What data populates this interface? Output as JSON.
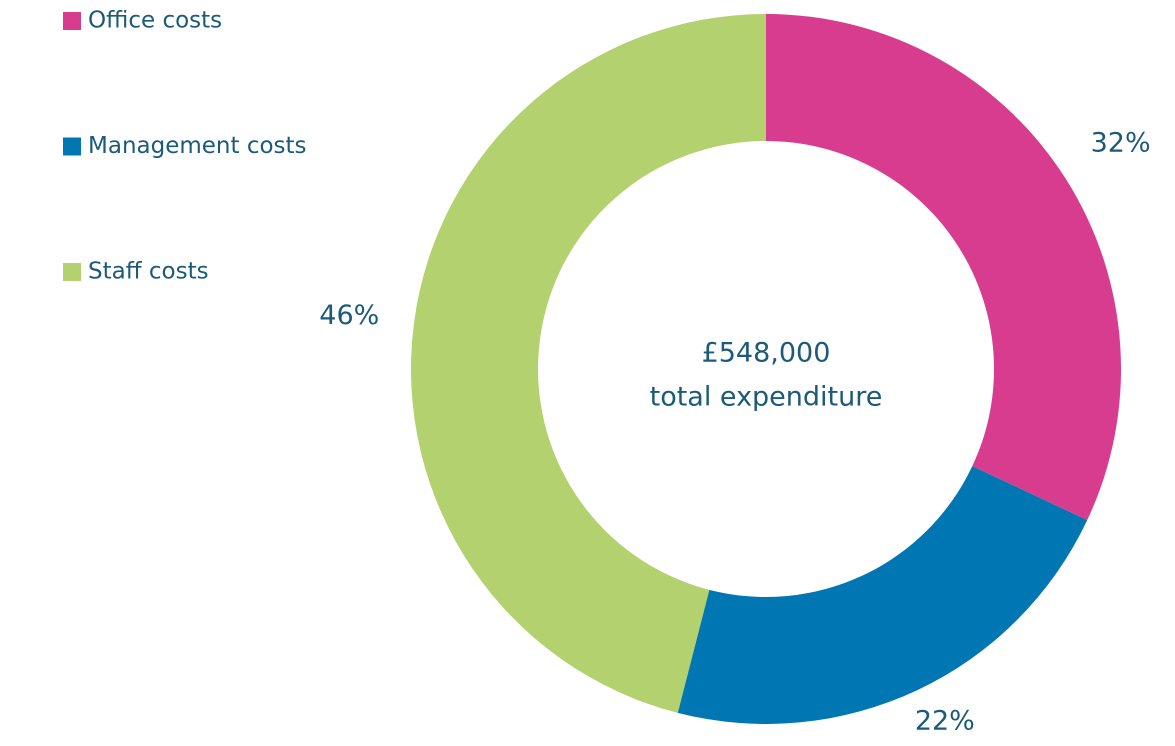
{
  "chart_data": {
    "type": "donut",
    "categories": [
      "Office costs",
      "Management costs",
      "Staff costs"
    ],
    "values": [
      32,
      22,
      46
    ],
    "value_labels": [
      "32%",
      "22%",
      "46%"
    ],
    "colors": [
      "#d83c8e",
      "#0077b3",
      "#b3d16e"
    ],
    "annotations": [
      "£548,000",
      "total expenditure"
    ],
    "legend": "top-left"
  }
}
